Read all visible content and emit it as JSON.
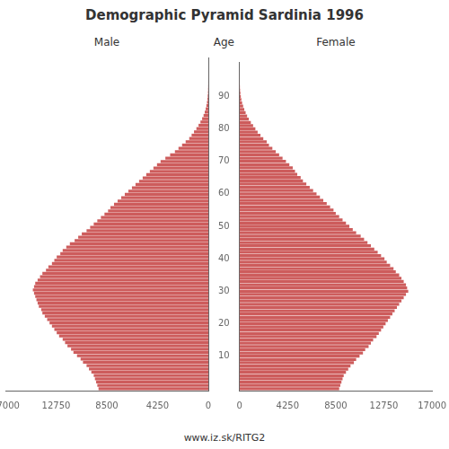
{
  "chart_data": {
    "type": "bar",
    "orientation": "horizontal",
    "title": "Demographic Pyramid Sardinia 1996",
    "subtitle": "www.iz.sk/RITG2",
    "y_label": "Age",
    "x": [
      0,
      1,
      2,
      3,
      4,
      5,
      6,
      7,
      8,
      9,
      10,
      11,
      12,
      13,
      14,
      15,
      16,
      17,
      18,
      19,
      20,
      21,
      22,
      23,
      24,
      25,
      26,
      27,
      28,
      29,
      30,
      31,
      32,
      33,
      34,
      35,
      36,
      37,
      38,
      39,
      40,
      41,
      42,
      43,
      44,
      45,
      46,
      47,
      48,
      49,
      50,
      51,
      52,
      53,
      54,
      55,
      56,
      57,
      58,
      59,
      60,
      61,
      62,
      63,
      64,
      65,
      66,
      67,
      68,
      69,
      70,
      71,
      72,
      73,
      74,
      75,
      76,
      77,
      78,
      79,
      80,
      81,
      82,
      83,
      84,
      85,
      86,
      87,
      88,
      89,
      90,
      91,
      92,
      93,
      94,
      95,
      96,
      97,
      98,
      99
    ],
    "series": [
      {
        "name": "Male",
        "color": "#cd5c5c",
        "values": [
          9200,
          9300,
          9400,
          9500,
          9600,
          9800,
          10000,
          10200,
          10500,
          10700,
          11000,
          11300,
          11500,
          11800,
          12000,
          12200,
          12500,
          12700,
          12900,
          13100,
          13300,
          13500,
          13700,
          13900,
          14000,
          14200,
          14300,
          14400,
          14500,
          14600,
          14700,
          14600,
          14500,
          14300,
          14100,
          13900,
          13600,
          13400,
          13100,
          12900,
          12700,
          12400,
          12200,
          11900,
          11600,
          11200,
          10900,
          10600,
          10200,
          9900,
          9600,
          9300,
          9000,
          8700,
          8400,
          8200,
          7900,
          7600,
          7300,
          7000,
          6700,
          6400,
          6100,
          5800,
          5500,
          5200,
          4900,
          4600,
          4300,
          4000,
          3600,
          3200,
          2800,
          2500,
          2200,
          1900,
          1600,
          1400,
          1200,
          1000,
          820,
          660,
          520,
          400,
          300,
          220,
          160,
          110,
          75,
          50,
          30,
          18,
          11,
          7,
          4,
          2,
          1,
          1,
          0,
          0
        ]
      },
      {
        "name": "Female",
        "color": "#cd5c5c",
        "values": [
          8800,
          8900,
          9000,
          9100,
          9200,
          9400,
          9600,
          9800,
          10100,
          10300,
          10600,
          10900,
          11100,
          11400,
          11600,
          11800,
          12100,
          12300,
          12500,
          12700,
          12900,
          13100,
          13300,
          13500,
          13700,
          13900,
          14100,
          14300,
          14500,
          14700,
          14900,
          14800,
          14700,
          14500,
          14300,
          14100,
          13800,
          13600,
          13300,
          13000,
          12800,
          12500,
          12200,
          11900,
          11600,
          11300,
          11000,
          10700,
          10300,
          10000,
          9700,
          9400,
          9100,
          8800,
          8500,
          8300,
          8000,
          7700,
          7400,
          7100,
          6800,
          6500,
          6200,
          5900,
          5600,
          5400,
          5100,
          4900,
          4700,
          4400,
          4100,
          3800,
          3500,
          3200,
          2900,
          2600,
          2400,
          2100,
          1850,
          1600,
          1400,
          1200,
          1000,
          820,
          670,
          540,
          420,
          320,
          230,
          165,
          115,
          78,
          52,
          34,
          21,
          13,
          8,
          5,
          3,
          1
        ]
      }
    ],
    "xlim": [
      0,
      17000
    ],
    "xticks": [
      0,
      4250,
      8500,
      12750,
      17000
    ],
    "ylim": [
      -0.6,
      100.6
    ],
    "yticks": [
      10,
      20,
      30,
      40,
      50,
      60,
      70,
      80,
      90
    ],
    "grid": false
  }
}
